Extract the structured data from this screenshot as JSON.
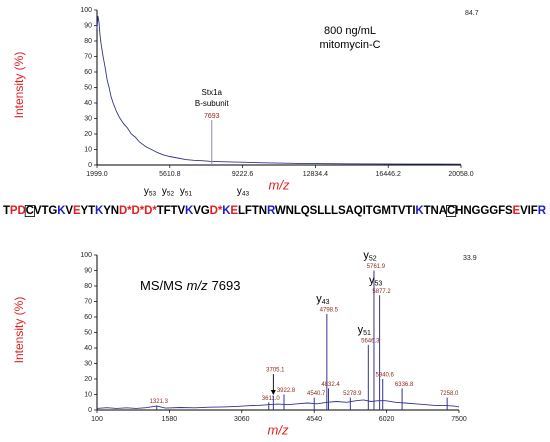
{
  "sequence": {
    "segments": [
      {
        "text": "T",
        "color": "#000000"
      },
      {
        "text": "PD",
        "color": "#e02020"
      },
      {
        "text": "C",
        "color": "#000000",
        "boxed": true
      },
      {
        "text": "VTG",
        "color": "#000000"
      },
      {
        "text": "K",
        "color": "#2020c0"
      },
      {
        "text": "V",
        "color": "#000000"
      },
      {
        "text": "E",
        "color": "#e02020"
      },
      {
        "text": "YT",
        "color": "#000000"
      },
      {
        "text": "K",
        "color": "#2020c0"
      },
      {
        "text": "YN",
        "color": "#000000"
      },
      {
        "text": "D*D*D*",
        "color": "#e02020"
      },
      {
        "text": "TFTV",
        "color": "#000000"
      },
      {
        "text": "K",
        "color": "#2020c0"
      },
      {
        "text": "VG",
        "color": "#000000"
      },
      {
        "text": "D*",
        "color": "#e02020"
      },
      {
        "text": "K",
        "color": "#2020c0"
      },
      {
        "text": "E",
        "color": "#e02020"
      },
      {
        "text": "LFTN",
        "color": "#000000"
      },
      {
        "text": "R",
        "color": "#2020c0"
      },
      {
        "text": "WNLQSLLLSAQITGMTVTI",
        "color": "#000000"
      },
      {
        "text": "K",
        "color": "#2020c0"
      },
      {
        "text": "TNA",
        "color": "#000000"
      },
      {
        "text": "C",
        "color": "#000000",
        "boxed": true
      },
      {
        "text": "HNGGGFS",
        "color": "#000000"
      },
      {
        "text": "E",
        "color": "#e02020"
      },
      {
        "text": "VIF",
        "color": "#000000"
      },
      {
        "text": "R",
        "color": "#2020c0"
      }
    ],
    "ions": [
      {
        "ion": "y",
        "number": "53"
      },
      {
        "ion": "y",
        "number": "52"
      },
      {
        "ion": "y",
        "number": "51"
      },
      {
        "ion": "y",
        "number": "43"
      }
    ]
  },
  "chart_data": [
    {
      "type": "line",
      "title": [
        "800 ng/mL",
        "mitomycin-C"
      ],
      "xlabel": "m/z",
      "ylabel": "Intensity (%)",
      "max_label": "84.7",
      "color": "#34348f",
      "x": [
        1999,
        2050,
        2100,
        2150,
        2200,
        2300,
        2400,
        2500,
        2600,
        2700,
        2800,
        2950,
        3100,
        3300,
        3500,
        3700,
        3900,
        4100,
        4400,
        4700,
        5000,
        5300,
        5600,
        6000,
        6400,
        6800,
        7200,
        7600,
        8000,
        8600,
        9200,
        10000,
        11000,
        12000,
        13000,
        14500,
        16000,
        17500,
        19000,
        20058
      ],
      "values": [
        88,
        96,
        92,
        84,
        78,
        70,
        63,
        55,
        50,
        44,
        40,
        35,
        31,
        27,
        24,
        20,
        18,
        15,
        12,
        10,
        8,
        6.5,
        5.5,
        4.5,
        3.5,
        3,
        2.8,
        2.4,
        2.2,
        2,
        1.8,
        1.5,
        1.2,
        1,
        0.9,
        0.8,
        0.7,
        0.6,
        0.6,
        0.5
      ],
      "xlim": [
        1999,
        20058
      ],
      "xticks": [
        {
          "value": 1999,
          "label": "1999.0"
        },
        5610.8,
        9222.6,
        12834.4,
        16446.2,
        {
          "value": 20058,
          "label": "20058.0"
        }
      ],
      "ylim": [
        0,
        100
      ],
      "yticks": [
        0,
        10,
        20,
        30,
        40,
        50,
        60,
        70,
        80,
        90,
        100
      ],
      "annotations": [
        {
          "x": 7693,
          "intensity": 29,
          "label": "7693",
          "lines": [
            "Stx1a",
            "B-subunit"
          ]
        }
      ]
    },
    {
      "type": "line",
      "title": [
        "MS/MS",
        "m/z",
        "7693"
      ],
      "xlabel": "m/z",
      "ylabel": "Intensity (%)",
      "max_label": "33.9",
      "color": "#34348f",
      "x": [
        100,
        300,
        500,
        700,
        900,
        1100,
        1321.3,
        1500,
        1800,
        2100,
        2400,
        2700,
        3000,
        3200,
        3400,
        3600,
        3800,
        4000,
        4200,
        4400,
        4600,
        4800,
        5000,
        5200,
        5400,
        5550,
        5700,
        5850,
        6000,
        6200,
        6400,
        6600,
        6800,
        7000,
        7200,
        7400,
        7500
      ],
      "values": [
        1,
        1.5,
        1,
        1.4,
        1,
        1.5,
        2.5,
        1.2,
        1.6,
        1.4,
        1.8,
        2,
        2.4,
        2.8,
        3,
        3.4,
        3.8,
        3.4,
        4,
        4.5,
        4,
        5,
        5.5,
        5,
        6,
        6.5,
        5.5,
        6,
        6,
        5,
        4.5,
        4,
        3.5,
        3,
        3,
        2.5,
        2
      ],
      "xlim": [
        100,
        7500
      ],
      "xticks": [
        100,
        1580,
        3060,
        4540,
        6020,
        7500
      ],
      "ylim": [
        0,
        100
      ],
      "yticks": [
        0,
        10,
        20,
        30,
        40,
        50,
        60,
        70,
        80,
        90,
        100
      ],
      "annotations": [
        {
          "x": 1321.3,
          "intensity": 3,
          "label": "1321.3"
        },
        {
          "x": 3611.0,
          "intensity": 5,
          "label": "3611.0"
        },
        {
          "x": 3705.1,
          "intensity": 9,
          "label": "3705.1",
          "arrow": true
        },
        {
          "x": 3922.8,
          "intensity": 10,
          "label": "3922.8"
        },
        {
          "x": 4540.7,
          "intensity": 8,
          "label": "4540.7"
        },
        {
          "x": 4798.5,
          "intensity": 62,
          "label": "4798.5",
          "ion": "y",
          "ion_number": "43"
        },
        {
          "x": 4832.4,
          "intensity": 14,
          "label": "4832.4"
        },
        {
          "x": 5278.9,
          "intensity": 8,
          "label": "5278.9"
        },
        {
          "x": 5646.3,
          "intensity": 42,
          "label": "5646.3",
          "ion": "y",
          "ion_number": "51"
        },
        {
          "x": 5761.9,
          "intensity": 90,
          "label": "5761.9",
          "ion": "y",
          "ion_number": "52"
        },
        {
          "x": 5877.2,
          "intensity": 74,
          "label": "5877.2",
          "ion": "y",
          "ion_number": "53"
        },
        {
          "x": 5940.6,
          "intensity": 20,
          "label": "5940.6"
        },
        {
          "x": 6336.8,
          "intensity": 14,
          "label": "6336.8"
        },
        {
          "x": 7258.0,
          "intensity": 8,
          "label": "7258.0"
        }
      ]
    }
  ]
}
